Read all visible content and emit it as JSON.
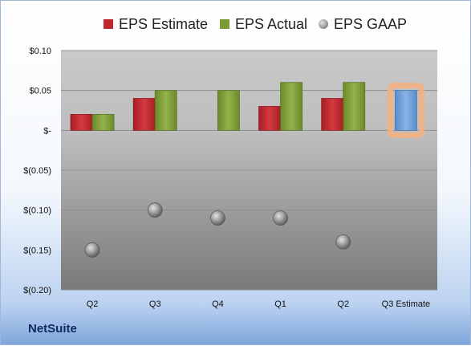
{
  "brand": "NetSuite",
  "legend": [
    {
      "label": "EPS Estimate",
      "color": "#c0262d",
      "icon": "square-swatch"
    },
    {
      "label": "EPS Actual",
      "color": "#7d9a35",
      "icon": "square-swatch"
    },
    {
      "label": "EPS GAAP",
      "color": "#9a9a9a",
      "icon": "sphere-swatch"
    }
  ],
  "chart_data": {
    "type": "bar",
    "categories": [
      "Q2",
      "Q3",
      "Q4",
      "Q1",
      "Q2",
      "Q3 Estimate"
    ],
    "series": [
      {
        "name": "EPS Estimate",
        "type": "bar",
        "color": "#c0262d",
        "values": [
          0.02,
          0.04,
          null,
          0.03,
          0.04,
          null
        ]
      },
      {
        "name": "EPS Actual",
        "type": "bar",
        "color": "#7d9a35",
        "values": [
          0.02,
          0.05,
          0.05,
          0.06,
          0.06,
          null
        ]
      },
      {
        "name": "EPS GAAP",
        "type": "scatter",
        "color": "#8c8c8c",
        "values": [
          -0.15,
          -0.1,
          -0.11,
          -0.11,
          -0.14,
          null
        ]
      },
      {
        "name": "Q3 Estimate",
        "type": "bar",
        "color": "#6f9fd8",
        "highlight": "#f4b183",
        "values": [
          null,
          null,
          null,
          null,
          null,
          0.05
        ]
      }
    ],
    "ylim": [
      -0.2,
      0.1
    ],
    "yticks": [
      0.1,
      0.05,
      0,
      -0.05,
      -0.1,
      -0.15,
      -0.2
    ],
    "ytick_labels": [
      "$0.10",
      "$0.05",
      "$-",
      "$(0.05)",
      "$(0.10)",
      "$(0.15)",
      "$(0.20)"
    ],
    "grid": true,
    "legend_position": "top"
  }
}
